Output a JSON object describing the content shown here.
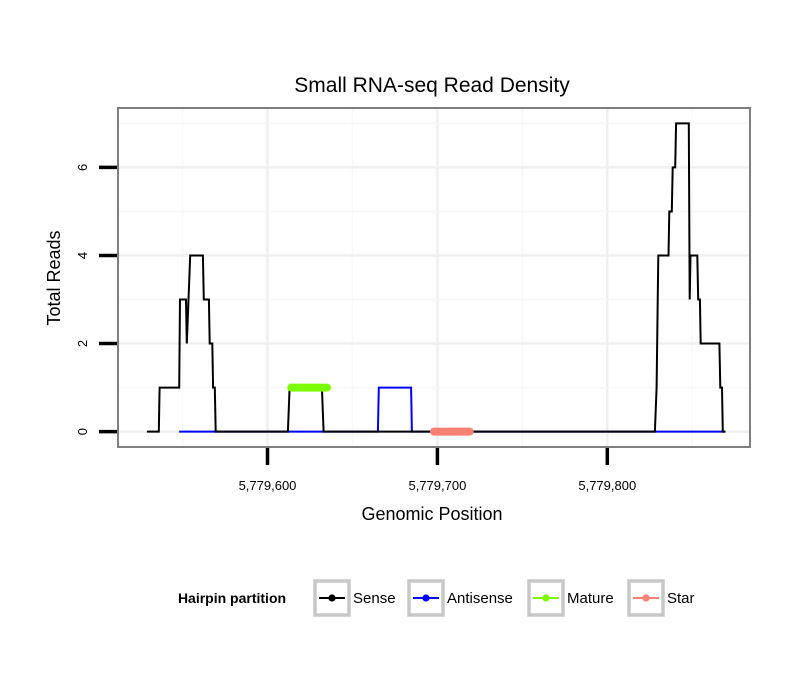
{
  "chart_data": {
    "type": "line",
    "title": "Small RNA-seq Read Density",
    "xlabel": "Genomic Position",
    "ylabel": "Total Reads",
    "xlim": [
      5779512,
      5779884
    ],
    "ylim": [
      -0.35,
      7.35
    ],
    "x_ticks": [
      5779600,
      5779700,
      5779800
    ],
    "x_tick_labels": [
      "5,779,600",
      "5,779,700",
      "5,779,800"
    ],
    "y_ticks": [
      0,
      2,
      4,
      6
    ],
    "y_tick_labels": [
      "0",
      "2",
      "4",
      "6"
    ],
    "grid": true,
    "legend": {
      "title": "Hairpin partition",
      "placement": "bottom",
      "entries": [
        "Sense",
        "Antisense",
        "Mature",
        "Star"
      ]
    },
    "series": [
      {
        "name": "Sense",
        "color": "#000000",
        "style": "thin",
        "x": [
          5779529,
          5779536,
          5779536.5,
          5779548,
          5779548.5,
          5779552,
          5779552.5,
          5779553.5,
          5779554.5,
          5779556.5,
          5779557,
          5779562,
          5779562.5,
          5779565.5,
          5779566,
          5779567.5,
          5779568,
          5779569,
          5779569.5,
          5779581,
          5779612,
          5779613,
          5779632,
          5779633,
          5779641,
          5779828,
          5779829,
          5779830,
          5779836,
          5779836.5,
          5779838,
          5779838.5,
          5779840,
          5779840.5,
          5779842,
          5779842.5,
          5779848,
          5779848.5,
          5779849,
          5779853,
          5779853.5,
          5779854.5,
          5779855,
          5779859,
          5779859.5,
          5779866,
          5779866.5,
          5779867.5,
          5779868,
          5779869.5
        ],
        "y": [
          0,
          0,
          1,
          1,
          3,
          3,
          2,
          3,
          4,
          4,
          4,
          4,
          3,
          3,
          2,
          2,
          1,
          1,
          0,
          0,
          0,
          1,
          1,
          0,
          0,
          0,
          1,
          4,
          4,
          5,
          5,
          6,
          6,
          7,
          7,
          7,
          7,
          3,
          4,
          4,
          3,
          3,
          2,
          2,
          2,
          2,
          1,
          1,
          0,
          0
        ]
      },
      {
        "name": "Antisense",
        "color": "#0000ff",
        "style": "thin",
        "x": [
          5779548,
          5779665,
          5779665.5,
          5779684.5,
          5779685,
          5779829,
          5779869.5
        ],
        "y": [
          0,
          0,
          1,
          1,
          0,
          0,
          0
        ]
      },
      {
        "name": "Mature",
        "color": "#7cfc00",
        "style": "thick",
        "x": [
          5779614,
          5779635
        ],
        "y": [
          1,
          1
        ]
      },
      {
        "name": "Star",
        "color": "#fa8072",
        "style": "thick",
        "x": [
          5779698,
          5779719
        ],
        "y": [
          0,
          0
        ]
      }
    ]
  }
}
